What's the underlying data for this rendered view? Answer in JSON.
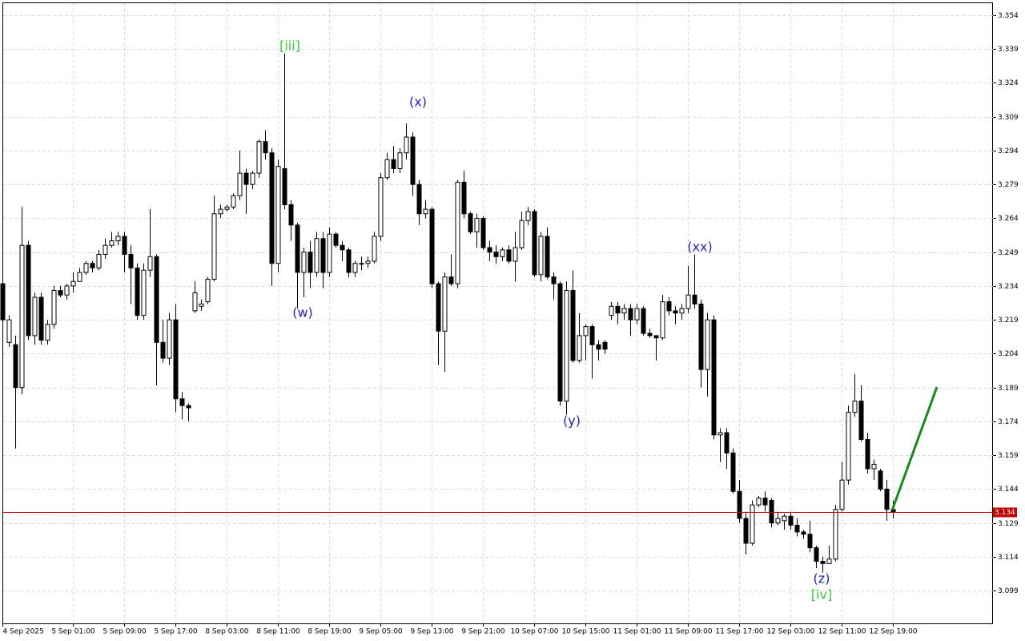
{
  "chart_data": {
    "type": "candlestick",
    "categories": [
      "4 Sep 2025",
      null,
      null,
      null,
      null,
      null,
      null,
      null,
      null,
      null,
      null,
      "5 Sep 01:00",
      null,
      null,
      null,
      null,
      null,
      null,
      null,
      "5 Sep 09:00",
      null,
      null,
      null,
      null,
      null,
      null,
      null,
      "5 Sep 17:00",
      null,
      null,
      null,
      null,
      null,
      null,
      null,
      "8 Sep 03:00",
      null,
      null,
      null,
      null,
      null,
      null,
      null,
      "8 Sep 11:00",
      null,
      null,
      null,
      null,
      null,
      null,
      null,
      "8 Sep 19:00",
      null,
      null,
      null,
      null,
      null,
      null,
      null,
      "9 Sep 05:00",
      null,
      null,
      null,
      null,
      null,
      null,
      null,
      "9 Sep 13:00",
      null,
      null,
      null,
      null,
      null,
      null,
      null,
      "9 Sep 21:00",
      null,
      null,
      null,
      null,
      null,
      null,
      null,
      "10 Sep 07:00",
      null,
      null,
      null,
      null,
      null,
      null,
      null,
      "10 Sep 15:00",
      null,
      null,
      null,
      null,
      null,
      null,
      null,
      "11 Sep 01:00",
      null,
      null,
      null,
      null,
      null,
      null,
      null,
      "11 Sep 09:00",
      null,
      null,
      null,
      null,
      null,
      null,
      null,
      "11 Sep 17:00",
      null,
      null,
      null,
      null,
      null,
      null,
      null,
      "12 Sep 03:00",
      null,
      null,
      null,
      null,
      null,
      null,
      null,
      "12 Sep 11:00",
      null,
      null,
      null,
      null,
      null,
      null,
      null,
      "12 Sep 19:00"
    ],
    "open": [
      3.235,
      3.209,
      3.208,
      3.189,
      3.252,
      3.212,
      3.229,
      3.21,
      3.217,
      3.232,
      3.23,
      3.234,
      3.236,
      3.24,
      3.244,
      3.242,
      3.248,
      3.252,
      3.254,
      3.256,
      3.248,
      3.242,
      3.221,
      3.241,
      3.247,
      3.209,
      3.202,
      3.219,
      3.184,
      3.181,
      3.223,
      3.225,
      3.227,
      3.237,
      3.266,
      3.268,
      3.269,
      3.274,
      3.284,
      3.279,
      3.284,
      3.298,
      3.293,
      3.244,
      3.286,
      3.27,
      3.261,
      3.24,
      3.249,
      3.24,
      3.255,
      3.24,
      3.257,
      3.252,
      3.25,
      3.24,
      3.244,
      3.244,
      3.245,
      3.256,
      3.282,
      3.29,
      3.286,
      3.293,
      3.3,
      3.279,
      3.266,
      3.268,
      3.235,
      3.214,
      3.238,
      3.235,
      3.28,
      3.266,
      3.258,
      3.264,
      3.251,
      3.249,
      3.247,
      3.25,
      3.245,
      3.251,
      3.263,
      3.267,
      3.239,
      3.256,
      3.238,
      3.235,
      3.183,
      3.232,
      3.201,
      3.212,
      3.216,
      3.208,
      3.209,
      3.221,
      3.225,
      3.222,
      3.224,
      3.219,
      3.224,
      3.213,
      3.212,
      3.211,
      3.227,
      3.223,
      3.222,
      3.224,
      3.23,
      3.226,
      3.197,
      3.219,
      3.168,
      3.169,
      3.16,
      3.143,
      3.131,
      3.12,
      3.137,
      3.14,
      3.139,
      3.129,
      3.13,
      3.132,
      3.128,
      3.125,
      3.124,
      3.118,
      3.112,
      3.111,
      3.113,
      3.135,
      3.148,
      3.178,
      3.183,
      3.166,
      3.153,
      3.152,
      3.144,
      3.135
    ],
    "high": [
      3.236,
      3.221,
      3.212,
      3.269,
      3.254,
      3.231,
      3.231,
      3.219,
      3.234,
      3.234,
      3.235,
      3.24,
      3.242,
      3.245,
      3.245,
      3.25,
      3.255,
      3.258,
      3.258,
      3.258,
      3.252,
      3.244,
      3.244,
      3.268,
      3.248,
      3.219,
      3.222,
      3.226,
      3.187,
      3.182,
      3.236,
      3.228,
      3.238,
      3.274,
      3.27,
      3.27,
      3.275,
      3.294,
      3.286,
      3.285,
      3.299,
      3.303,
      3.295,
      3.29,
      3.337,
      3.272,
      3.262,
      3.251,
      3.254,
      3.258,
      3.258,
      3.26,
      3.258,
      3.254,
      3.251,
      3.245,
      3.247,
      3.247,
      3.258,
      3.284,
      3.293,
      3.296,
      3.295,
      3.306,
      3.302,
      3.281,
      3.272,
      3.269,
      3.236,
      3.24,
      3.248,
      3.281,
      3.285,
      3.267,
      3.266,
      3.265,
      3.254,
      3.252,
      3.251,
      3.252,
      3.258,
      3.267,
      3.269,
      3.268,
      3.258,
      3.26,
      3.24,
      3.236,
      3.236,
      3.241,
      3.222,
      3.217,
      3.217,
      3.21,
      3.21,
      3.227,
      3.227,
      3.226,
      3.226,
      3.226,
      3.225,
      3.215,
      3.212,
      3.23,
      3.229,
      3.225,
      3.226,
      3.243,
      3.248,
      3.228,
      3.222,
      3.221,
      3.171,
      3.171,
      3.162,
      3.148,
      3.134,
      3.139,
      3.141,
      3.143,
      3.14,
      3.134,
      3.133,
      3.134,
      3.131,
      3.126,
      3.13,
      3.119,
      3.114,
      3.119,
      3.137,
      3.156,
      3.181,
      3.195,
      3.19,
      3.169,
      3.157,
      3.153,
      3.148,
      3.139
    ],
    "low": [
      3.212,
      3.207,
      3.162,
      3.186,
      3.21,
      3.208,
      3.208,
      3.208,
      3.215,
      3.229,
      3.228,
      3.231,
      3.236,
      3.239,
      3.24,
      3.241,
      3.246,
      3.251,
      3.252,
      3.24,
      3.226,
      3.219,
      3.219,
      3.238,
      3.19,
      3.2,
      3.199,
      3.178,
      3.175,
      3.174,
      3.222,
      3.223,
      3.226,
      3.236,
      3.264,
      3.267,
      3.268,
      3.272,
      3.266,
      3.277,
      3.282,
      3.29,
      3.234,
      3.24,
      3.268,
      3.254,
      3.224,
      3.229,
      3.233,
      3.238,
      3.233,
      3.238,
      3.251,
      3.245,
      3.238,
      3.238,
      3.241,
      3.242,
      3.244,
      3.254,
      3.281,
      3.284,
      3.284,
      3.29,
      3.274,
      3.261,
      3.264,
      3.233,
      3.199,
      3.196,
      3.234,
      3.233,
      3.264,
      3.257,
      3.251,
      3.25,
      3.245,
      3.244,
      3.245,
      3.244,
      3.236,
      3.25,
      3.261,
      3.238,
      3.236,
      3.237,
      3.228,
      3.181,
      3.177,
      3.2,
      3.2,
      3.201,
      3.193,
      3.201,
      3.204,
      3.219,
      3.217,
      3.219,
      3.212,
      3.217,
      3.212,
      3.211,
      3.201,
      3.21,
      3.221,
      3.217,
      3.219,
      3.222,
      3.224,
      3.189,
      3.185,
      3.166,
      3.156,
      3.153,
      3.142,
      3.129,
      3.115,
      3.119,
      3.136,
      3.134,
      3.127,
      3.128,
      3.126,
      3.126,
      3.123,
      3.122,
      3.116,
      3.109,
      3.107,
      3.111,
      3.112,
      3.134,
      3.146,
      3.176,
      3.165,
      3.151,
      3.148,
      3.143,
      3.13,
      3.131
    ],
    "close": [
      3.219,
      3.219,
      3.189,
      3.252,
      3.212,
      3.229,
      3.21,
      3.217,
      3.232,
      3.23,
      3.234,
      3.236,
      3.24,
      3.244,
      3.242,
      3.248,
      3.252,
      3.254,
      3.256,
      3.248,
      3.242,
      3.221,
      3.241,
      3.247,
      3.209,
      3.202,
      3.219,
      3.184,
      3.181,
      3.18,
      3.231,
      3.226,
      3.237,
      3.266,
      3.268,
      3.269,
      3.274,
      3.284,
      3.279,
      3.284,
      3.298,
      3.293,
      3.244,
      3.287,
      3.27,
      3.261,
      3.24,
      3.249,
      3.24,
      3.255,
      3.24,
      3.257,
      3.252,
      3.25,
      3.24,
      3.244,
      3.244,
      3.245,
      3.256,
      3.282,
      3.29,
      3.286,
      3.293,
      3.3,
      3.279,
      3.266,
      3.268,
      3.235,
      3.214,
      3.238,
      3.235,
      3.28,
      3.266,
      3.258,
      3.264,
      3.251,
      3.249,
      3.247,
      3.25,
      3.245,
      3.251,
      3.263,
      3.267,
      3.239,
      3.256,
      3.238,
      3.235,
      3.183,
      3.232,
      3.201,
      3.212,
      3.216,
      3.208,
      3.206,
      3.206,
      3.225,
      3.222,
      3.224,
      3.219,
      3.224,
      3.213,
      3.212,
      3.211,
      3.227,
      3.223,
      3.222,
      3.224,
      3.23,
      3.226,
      3.197,
      3.219,
      3.168,
      3.169,
      3.16,
      3.143,
      3.131,
      3.12,
      3.137,
      3.14,
      3.137,
      3.129,
      3.131,
      3.132,
      3.128,
      3.125,
      3.124,
      3.118,
      3.112,
      3.111,
      3.113,
      3.135,
      3.148,
      3.178,
      3.183,
      3.166,
      3.153,
      3.155,
      3.144,
      3.135,
      3.134
    ],
    "up_color": "#ffffff",
    "down_color": "#000000",
    "ylim": [
      3.0845,
      3.3593
    ],
    "yticks": [
      3.354,
      3.339,
      3.324,
      3.309,
      3.294,
      3.279,
      3.264,
      3.249,
      3.234,
      3.219,
      3.204,
      3.189,
      3.174,
      3.159,
      3.144,
      3.129,
      3.114,
      3.099
    ],
    "grid": true,
    "current_price": 3.134,
    "current_price_color": "#c00000",
    "annotations": [
      {
        "text": "[iii]",
        "color": "#32cd32"
      },
      {
        "text": "(x)",
        "color": "#2222cc"
      },
      {
        "text": "(w)",
        "color": "#2222cc"
      },
      {
        "text": "(y)",
        "color": "#2222cc"
      },
      {
        "text": "(xx)",
        "color": "#2222cc"
      },
      {
        "text": "(z)",
        "color": "#2222cc"
      },
      {
        "text": "[iv]",
        "color": "#32cd32"
      }
    ]
  }
}
